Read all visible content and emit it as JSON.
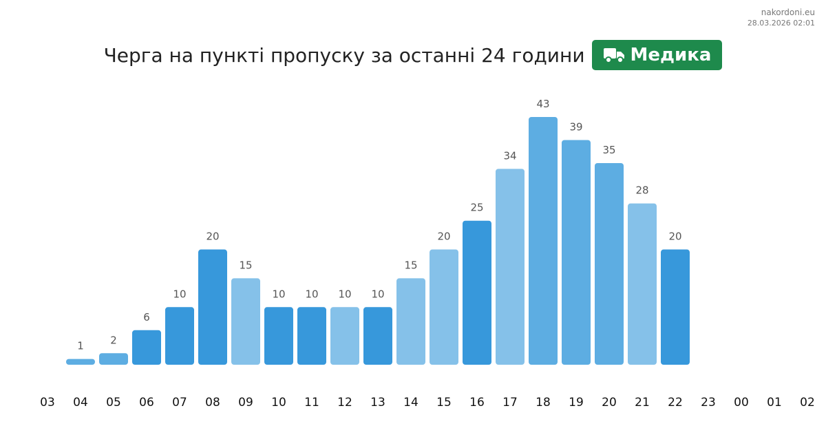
{
  "source": {
    "site": "nakordoni.eu",
    "datetime": "28.03.2026 02:01"
  },
  "header": {
    "title": "Черга на пункті пропуску за останні 24 години",
    "checkpoint_badge": {
      "label": "Медика",
      "icon": "truck-icon",
      "color": "#1e8a4c"
    }
  },
  "colors": {
    "bar_dark": "#3798db",
    "bar_mid": "#5dade2",
    "bar_light": "#85c1e9",
    "value_label": "#555555",
    "axis_label": "#111111"
  },
  "chart_data": {
    "type": "bar",
    "title": "Черга на пункті пропуску за останні 24 години",
    "xlabel": "",
    "ylabel": "",
    "grid": false,
    "legend": "none",
    "ylim": [
      0,
      43
    ],
    "categories": [
      "03",
      "04",
      "05",
      "06",
      "07",
      "08",
      "09",
      "10",
      "11",
      "12",
      "13",
      "14",
      "15",
      "16",
      "17",
      "18",
      "19",
      "20",
      "21",
      "22",
      "23",
      "00",
      "01",
      "02"
    ],
    "values": [
      null,
      1,
      2,
      6,
      10,
      20,
      15,
      10,
      10,
      10,
      10,
      15,
      20,
      25,
      34,
      43,
      39,
      35,
      28,
      20,
      null,
      null,
      null,
      null
    ],
    "bar_shades": [
      null,
      "mid",
      "mid",
      "dark",
      "dark",
      "dark",
      "light",
      "dark",
      "dark",
      "light",
      "dark",
      "light",
      "light",
      "dark",
      "light",
      "mid",
      "mid",
      "mid",
      "light",
      "dark",
      null,
      null,
      null,
      null
    ]
  }
}
